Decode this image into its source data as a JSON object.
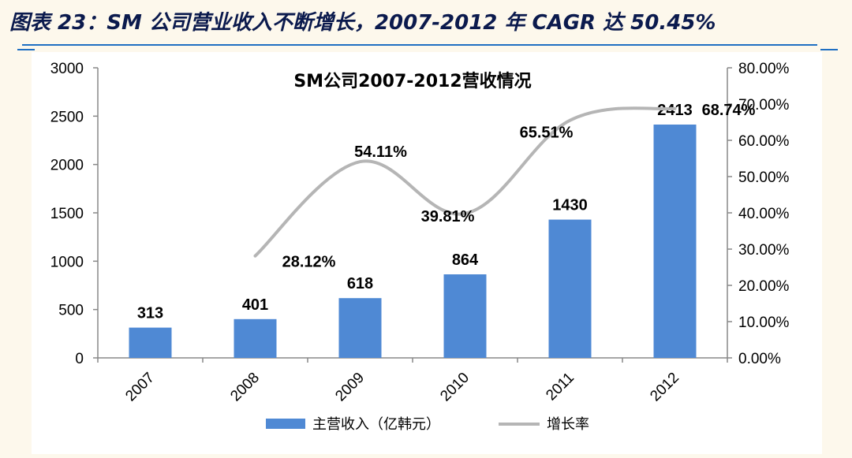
{
  "figure_title": "图表 23：SM 公司营业收入不断增长，2007-2012 年 CAGR 达 50.45%",
  "chart_data": {
    "type": "bar",
    "title": "SM公司2007-2012营收情况",
    "categories": [
      "2007",
      "2008",
      "2009",
      "2010",
      "2011",
      "2012"
    ],
    "series": [
      {
        "name": "主营收入（亿韩元）",
        "type": "bar",
        "axis": "left",
        "color": "#4f89d4",
        "values": [
          313,
          401,
          618,
          864,
          1430,
          2413
        ],
        "labels": [
          "313",
          "401",
          "618",
          "864",
          "1430",
          "2413"
        ]
      },
      {
        "name": "增长率",
        "type": "line",
        "axis": "right",
        "color": "#b5b5b5",
        "values": [
          null,
          28.12,
          54.11,
          39.81,
          65.51,
          68.74
        ],
        "labels": [
          "",
          "28.12%",
          "54.11%",
          "39.81%",
          "65.51%",
          "68.74%"
        ]
      }
    ],
    "y_left": {
      "min": 0,
      "max": 3000,
      "step": 500,
      "ticks": [
        "0",
        "500",
        "1000",
        "1500",
        "2000",
        "2500",
        "3000"
      ]
    },
    "y_right": {
      "min": 0,
      "max": 80,
      "step": 10,
      "ticks": [
        "0.00%",
        "10.00%",
        "20.00%",
        "30.00%",
        "40.00%",
        "50.00%",
        "60.00%",
        "70.00%",
        "80.00%"
      ]
    },
    "legend_position": "bottom",
    "grid": false
  }
}
